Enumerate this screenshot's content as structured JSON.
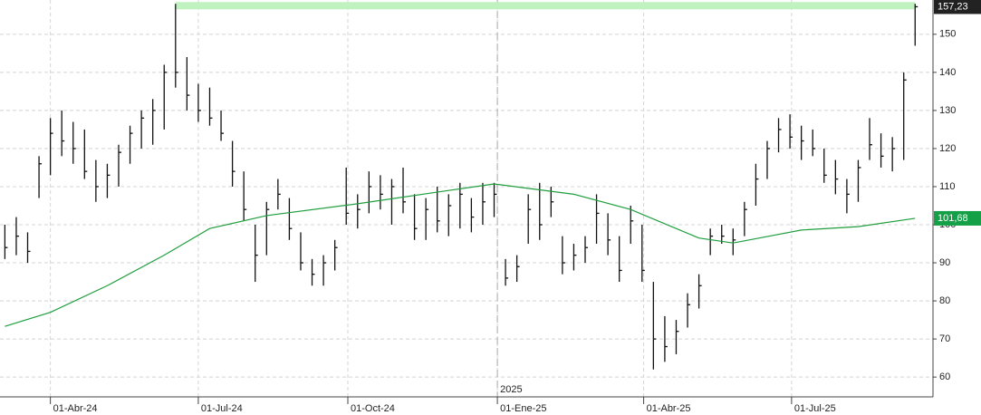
{
  "chart_data": {
    "type": "ohlc",
    "xlim": [
      "2024-03-01",
      "2025-09-26"
    ],
    "ylim": [
      54.8,
      159
    ],
    "yticks": [
      60,
      70,
      80,
      90,
      100,
      110,
      120,
      130,
      140,
      150
    ],
    "xticks": [
      {
        "value": "2024-04-01",
        "label": "01-Abr-24"
      },
      {
        "value": "2024-07-01",
        "label": "01-Jul-24"
      },
      {
        "value": "2024-10-01",
        "label": "01-Oct-24"
      },
      {
        "value": "2025-01-01",
        "label": "01-Ene-25"
      },
      {
        "value": "2025-04-01",
        "label": "01-Abr-25"
      },
      {
        "value": "2025-07-01",
        "label": "01-Jul-25"
      }
    ],
    "grid": true,
    "color": "#111111",
    "year_marker": {
      "x": "2025-01-01",
      "label": "2025"
    },
    "highlight": {
      "from": "2024-06-17",
      "to": "2025-09-15",
      "level": 157.5,
      "color": "#bff2bf"
    },
    "ohlc": {
      "x": [
        "2024-03-04",
        "2024-03-11",
        "2024-03-18",
        "2024-03-25",
        "2024-04-01",
        "2024-04-08",
        "2024-04-15",
        "2024-04-22",
        "2024-04-29",
        "2024-05-06",
        "2024-05-13",
        "2024-05-20",
        "2024-05-27",
        "2024-06-03",
        "2024-06-10",
        "2024-06-17",
        "2024-06-24",
        "2024-07-01",
        "2024-07-08",
        "2024-07-15",
        "2024-07-22",
        "2024-07-29",
        "2024-08-05",
        "2024-08-12",
        "2024-08-19",
        "2024-08-26",
        "2024-09-02",
        "2024-09-09",
        "2024-09-16",
        "2024-09-23",
        "2024-09-30",
        "2024-10-07",
        "2024-10-14",
        "2024-10-21",
        "2024-10-28",
        "2024-11-04",
        "2024-11-11",
        "2024-11-18",
        "2024-11-25",
        "2024-12-02",
        "2024-12-09",
        "2024-12-16",
        "2024-12-23",
        "2024-12-30",
        "2025-01-06",
        "2025-01-13",
        "2025-01-20",
        "2025-01-27",
        "2025-02-03",
        "2025-02-10",
        "2025-02-17",
        "2025-02-24",
        "2025-03-03",
        "2025-03-10",
        "2025-03-17",
        "2025-03-24",
        "2025-03-31",
        "2025-04-07",
        "2025-04-14",
        "2025-04-21",
        "2025-04-28",
        "2025-05-05",
        "2025-05-12",
        "2025-05-19",
        "2025-05-26",
        "2025-06-02",
        "2025-06-09",
        "2025-06-16",
        "2025-06-23",
        "2025-06-30",
        "2025-07-07",
        "2025-07-14",
        "2025-07-21",
        "2025-07-28",
        "2025-08-04",
        "2025-08-11",
        "2025-08-18",
        "2025-08-25",
        "2025-09-01",
        "2025-09-08",
        "2025-09-15"
      ],
      "low": [
        91,
        92,
        90,
        107,
        113,
        118,
        116,
        112,
        106,
        107,
        110,
        116,
        120,
        121,
        125,
        136,
        130,
        127,
        126,
        122,
        110,
        101,
        85,
        92,
        104,
        96,
        88,
        84,
        84,
        88,
        100,
        99,
        103,
        104,
        100,
        103,
        96,
        96,
        98,
        97,
        99,
        98,
        100,
        102,
        84,
        85,
        95,
        96,
        102,
        87,
        88,
        90,
        95,
        92,
        85,
        95,
        85,
        62,
        64,
        66,
        73,
        78,
        92,
        95,
        92,
        97,
        105,
        112,
        119,
        120,
        117,
        118,
        111,
        108,
        103,
        106,
        117,
        115,
        114,
        117,
        147
      ],
      "high": [
        100,
        102,
        98,
        118,
        128,
        130,
        127,
        125,
        117,
        116,
        121,
        126,
        130,
        133,
        142,
        158,
        144,
        137,
        136,
        130,
        122,
        114,
        100,
        106,
        112,
        107,
        98,
        91,
        92,
        96,
        115,
        108,
        114,
        113,
        112,
        115,
        108,
        107,
        110,
        108,
        111,
        107,
        111,
        111,
        91,
        92,
        108,
        111,
        110,
        97,
        95,
        97,
        108,
        103,
        97,
        105,
        100,
        85,
        76,
        75,
        82,
        87,
        99,
        100,
        99,
        106,
        116,
        122,
        128,
        129,
        126,
        125,
        120,
        117,
        112,
        117,
        128,
        124,
        123,
        140,
        158
      ],
      "close": [
        94,
        97,
        93,
        116,
        124,
        122,
        120,
        114,
        110,
        113,
        119,
        124,
        128,
        130,
        140,
        140,
        134,
        130,
        128,
        124,
        114,
        104,
        92,
        104,
        108,
        99,
        90,
        87,
        90,
        94,
        103,
        104,
        110,
        108,
        110,
        106,
        99,
        104,
        101,
        105,
        108,
        102,
        106,
        108,
        86,
        89,
        104,
        100,
        106,
        90,
        92,
        94,
        103,
        96,
        88,
        101,
        88,
        70,
        68,
        72,
        79,
        84,
        97,
        97,
        96,
        104,
        112,
        120,
        125,
        123,
        122,
        120,
        113,
        112,
        108,
        115,
        121,
        118,
        120,
        138,
        157.23
      ],
      "close_value_label": "157,23"
    },
    "moving_average": {
      "color": "#1f9e3e",
      "x": [
        "2024-03-04",
        "2024-04-01",
        "2024-05-06",
        "2024-06-10",
        "2024-07-08",
        "2024-08-12",
        "2024-10-07",
        "2024-12-02",
        "2024-12-30",
        "2025-02-17",
        "2025-03-24",
        "2025-05-05",
        "2025-05-26",
        "2025-07-07",
        "2025-08-11",
        "2025-09-15"
      ],
      "values": [
        73.3,
        77,
        84,
        92,
        99,
        102.4,
        105.5,
        109,
        110.7,
        108,
        104,
        96.5,
        95.2,
        98.6,
        99.5,
        101.68
      ],
      "value_label": "101,68"
    }
  }
}
